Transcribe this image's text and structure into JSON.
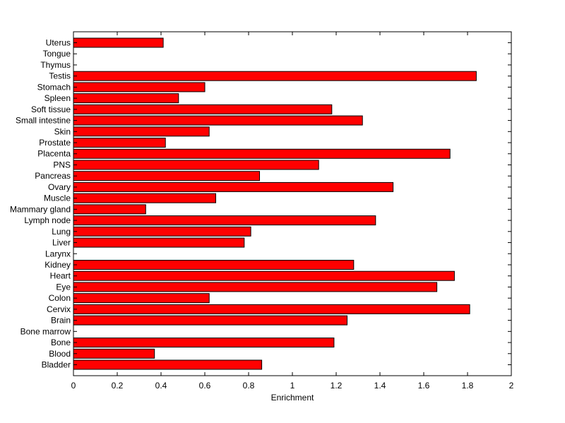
{
  "chart_data": {
    "type": "bar",
    "orientation": "horizontal",
    "categories": [
      "Uterus",
      "Tongue",
      "Thymus",
      "Testis",
      "Stomach",
      "Spleen",
      "Soft tissue",
      "Small intestine",
      "Skin",
      "Prostate",
      "Placenta",
      "PNS",
      "Pancreas",
      "Ovary",
      "Muscle",
      "Mammary gland",
      "Lymph node",
      "Lung",
      "Liver",
      "Larynx",
      "Kidney",
      "Heart",
      "Eye",
      "Colon",
      "Cervix",
      "Brain",
      "Bone marrow",
      "Bone",
      "Blood",
      "Bladder"
    ],
    "values": [
      0.41,
      0,
      0,
      1.84,
      0.6,
      0.48,
      1.18,
      1.32,
      0.62,
      0.42,
      1.72,
      1.12,
      0.85,
      1.46,
      0.65,
      0.33,
      1.38,
      0.81,
      0.78,
      0,
      1.28,
      1.74,
      1.66,
      0.62,
      1.81,
      1.25,
      0,
      1.19,
      0.37,
      0.86
    ],
    "xlabel": "Enrichment",
    "ylabel": "",
    "title": "",
    "xlim": [
      0,
      2
    ],
    "xticks": [
      "0",
      "0.2",
      "0.4",
      "0.6",
      "0.8",
      "1",
      "1.2",
      "1.4",
      "1.6",
      "1.8",
      "2"
    ],
    "grid": false,
    "bar_color": "#ff0000",
    "bar_edge_color": "#000000"
  }
}
